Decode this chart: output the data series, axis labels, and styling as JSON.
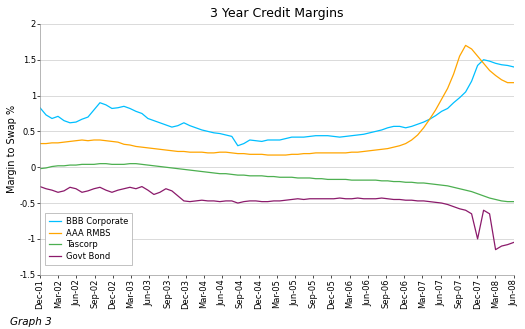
{
  "title": "3 Year Credit Margins",
  "ylabel": "Margin to Swap %",
  "footer": "Graph 3",
  "ylim": [
    -1.5,
    2.0
  ],
  "yticks": [
    -1.5,
    -1.0,
    -0.5,
    0.0,
    0.5,
    1.0,
    1.5,
    2.0
  ],
  "x_labels": [
    "Dec-01",
    "Mar-02",
    "Jun-02",
    "Sep-02",
    "Dec-02",
    "Mar-03",
    "Jun-03",
    "Sep-03",
    "Dec-03",
    "Mar-04",
    "Jun-04",
    "Sep-04",
    "Dec-04",
    "Mar-05",
    "Jun-05",
    "Sep-05",
    "Dec-05",
    "Mar-06",
    "Jun-06",
    "Sep-06",
    "Dec-06",
    "Mar-07",
    "Jun-07",
    "Sep-07",
    "Dec-07",
    "Mar-08",
    "Jun-08"
  ],
  "series": {
    "BBB Corporate": {
      "color": "#00BFFF",
      "linewidth": 0.9,
      "values": [
        0.83,
        0.73,
        0.68,
        0.71,
        0.65,
        0.62,
        0.63,
        0.67,
        0.7,
        0.8,
        0.9,
        0.87,
        0.82,
        0.83,
        0.85,
        0.82,
        0.78,
        0.75,
        0.68,
        0.65,
        0.62,
        0.59,
        0.56,
        0.58,
        0.62,
        0.58,
        0.55,
        0.52,
        0.5,
        0.48,
        0.47,
        0.45,
        0.43,
        0.3,
        0.33,
        0.38,
        0.37,
        0.36,
        0.38,
        0.38,
        0.38,
        0.4,
        0.42,
        0.42,
        0.42,
        0.43,
        0.44,
        0.44,
        0.44,
        0.43,
        0.42,
        0.43,
        0.44,
        0.45,
        0.46,
        0.48,
        0.5,
        0.52,
        0.55,
        0.57,
        0.57,
        0.55,
        0.57,
        0.6,
        0.63,
        0.67,
        0.72,
        0.78,
        0.82,
        0.9,
        0.97,
        1.05,
        1.2,
        1.42,
        1.5,
        1.48,
        1.45,
        1.43,
        1.42,
        1.4
      ]
    },
    "AAA RMBS": {
      "color": "#FFA500",
      "linewidth": 0.9,
      "values": [
        0.33,
        0.33,
        0.34,
        0.34,
        0.35,
        0.36,
        0.37,
        0.38,
        0.37,
        0.38,
        0.38,
        0.37,
        0.36,
        0.35,
        0.32,
        0.31,
        0.29,
        0.28,
        0.27,
        0.26,
        0.25,
        0.24,
        0.23,
        0.22,
        0.22,
        0.21,
        0.21,
        0.21,
        0.2,
        0.2,
        0.21,
        0.21,
        0.2,
        0.19,
        0.19,
        0.18,
        0.18,
        0.18,
        0.17,
        0.17,
        0.17,
        0.17,
        0.18,
        0.18,
        0.19,
        0.19,
        0.2,
        0.2,
        0.2,
        0.2,
        0.2,
        0.2,
        0.21,
        0.21,
        0.22,
        0.23,
        0.24,
        0.25,
        0.26,
        0.28,
        0.3,
        0.33,
        0.38,
        0.45,
        0.55,
        0.67,
        0.8,
        0.95,
        1.1,
        1.3,
        1.55,
        1.7,
        1.65,
        1.55,
        1.45,
        1.35,
        1.28,
        1.22,
        1.18,
        1.18
      ]
    },
    "Tascorp": {
      "color": "#4CAF50",
      "linewidth": 0.9,
      "values": [
        -0.02,
        -0.01,
        0.01,
        0.02,
        0.02,
        0.03,
        0.03,
        0.04,
        0.04,
        0.04,
        0.05,
        0.05,
        0.04,
        0.04,
        0.04,
        0.05,
        0.05,
        0.04,
        0.03,
        0.02,
        0.01,
        0.0,
        -0.01,
        -0.02,
        -0.03,
        -0.04,
        -0.05,
        -0.06,
        -0.07,
        -0.08,
        -0.09,
        -0.09,
        -0.1,
        -0.11,
        -0.11,
        -0.12,
        -0.12,
        -0.12,
        -0.13,
        -0.13,
        -0.14,
        -0.14,
        -0.14,
        -0.15,
        -0.15,
        -0.15,
        -0.16,
        -0.16,
        -0.17,
        -0.17,
        -0.17,
        -0.17,
        -0.18,
        -0.18,
        -0.18,
        -0.18,
        -0.18,
        -0.19,
        -0.19,
        -0.2,
        -0.2,
        -0.21,
        -0.21,
        -0.22,
        -0.22,
        -0.23,
        -0.24,
        -0.25,
        -0.26,
        -0.28,
        -0.3,
        -0.32,
        -0.34,
        -0.37,
        -0.4,
        -0.43,
        -0.45,
        -0.47,
        -0.48,
        -0.48
      ]
    },
    "Govt Bond": {
      "color": "#8B1A6B",
      "linewidth": 0.9,
      "values": [
        -0.27,
        -0.3,
        -0.32,
        -0.35,
        -0.33,
        -0.28,
        -0.3,
        -0.35,
        -0.33,
        -0.3,
        -0.28,
        -0.32,
        -0.35,
        -0.32,
        -0.3,
        -0.28,
        -0.3,
        -0.27,
        -0.32,
        -0.38,
        -0.35,
        -0.3,
        -0.33,
        -0.4,
        -0.47,
        -0.48,
        -0.47,
        -0.46,
        -0.47,
        -0.47,
        -0.48,
        -0.47,
        -0.47,
        -0.5,
        -0.48,
        -0.47,
        -0.47,
        -0.48,
        -0.48,
        -0.47,
        -0.47,
        -0.46,
        -0.45,
        -0.44,
        -0.45,
        -0.44,
        -0.44,
        -0.44,
        -0.44,
        -0.44,
        -0.43,
        -0.44,
        -0.44,
        -0.43,
        -0.44,
        -0.44,
        -0.44,
        -0.43,
        -0.44,
        -0.45,
        -0.45,
        -0.46,
        -0.46,
        -0.47,
        -0.47,
        -0.48,
        -0.49,
        -0.5,
        -0.52,
        -0.55,
        -0.58,
        -0.6,
        -0.65,
        -1.0,
        -0.6,
        -0.65,
        -1.15,
        -1.1,
        -1.08,
        -1.05
      ]
    }
  },
  "background_color": "#ffffff",
  "plot_bg_color": "#ffffff",
  "grid_color": "#cccccc",
  "title_fontsize": 9,
  "axis_fontsize": 7,
  "tick_fontsize": 6
}
